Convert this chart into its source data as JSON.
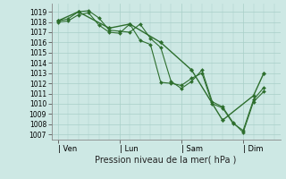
{
  "bg_color": "#cde8e4",
  "grid_color": "#a8cfc8",
  "line_color": "#2d6e2d",
  "marker_color": "#2d6e2d",
  "xlabel": "Pression niveau de la mer( hPa )",
  "ylim": [
    1006.5,
    1019.8
  ],
  "yticks": [
    1007,
    1008,
    1009,
    1010,
    1011,
    1012,
    1013,
    1014,
    1015,
    1016,
    1017,
    1018,
    1019
  ],
  "xtick_labels": [
    "| Ven",
    "| Lun",
    "| Sam",
    "| Dim"
  ],
  "xtick_positions": [
    0,
    3,
    6,
    9
  ],
  "xlim": [
    -0.3,
    10.8
  ],
  "series1_x": [
    0.0,
    0.5,
    1.0,
    1.5,
    2.0,
    2.5,
    3.0,
    3.5,
    4.0,
    4.5,
    5.0,
    5.5,
    6.0,
    6.5,
    7.0,
    7.5,
    8.0,
    8.5,
    9.0,
    9.5,
    10.0
  ],
  "series1_y": [
    1018.1,
    1018.3,
    1019.0,
    1019.1,
    1018.4,
    1017.2,
    1017.1,
    1017.0,
    1017.8,
    1016.4,
    1015.5,
    1012.2,
    1011.5,
    1012.2,
    1013.3,
    1010.2,
    1009.7,
    1008.2,
    1007.2,
    1010.2,
    1011.2
  ],
  "series2_x": [
    0.0,
    0.5,
    1.0,
    1.5,
    2.0,
    2.5,
    3.0,
    3.5,
    4.0,
    4.5,
    5.0,
    5.5,
    6.0,
    6.5,
    7.0,
    7.5,
    8.0,
    8.5,
    9.0,
    9.5,
    10.0
  ],
  "series2_y": [
    1018.0,
    1018.1,
    1018.7,
    1018.9,
    1017.7,
    1017.0,
    1016.9,
    1017.8,
    1016.2,
    1015.8,
    1012.1,
    1012.0,
    1011.8,
    1012.5,
    1013.0,
    1010.0,
    1009.6,
    1008.1,
    1007.4,
    1010.4,
    1011.6
  ],
  "series3_x": [
    0.0,
    1.0,
    2.5,
    3.5,
    5.0,
    6.5,
    8.0,
    9.5,
    10.0
  ],
  "series3_y": [
    1018.1,
    1019.0,
    1017.4,
    1017.8,
    1016.0,
    1013.3,
    1008.4,
    1010.8,
    1013.0
  ]
}
